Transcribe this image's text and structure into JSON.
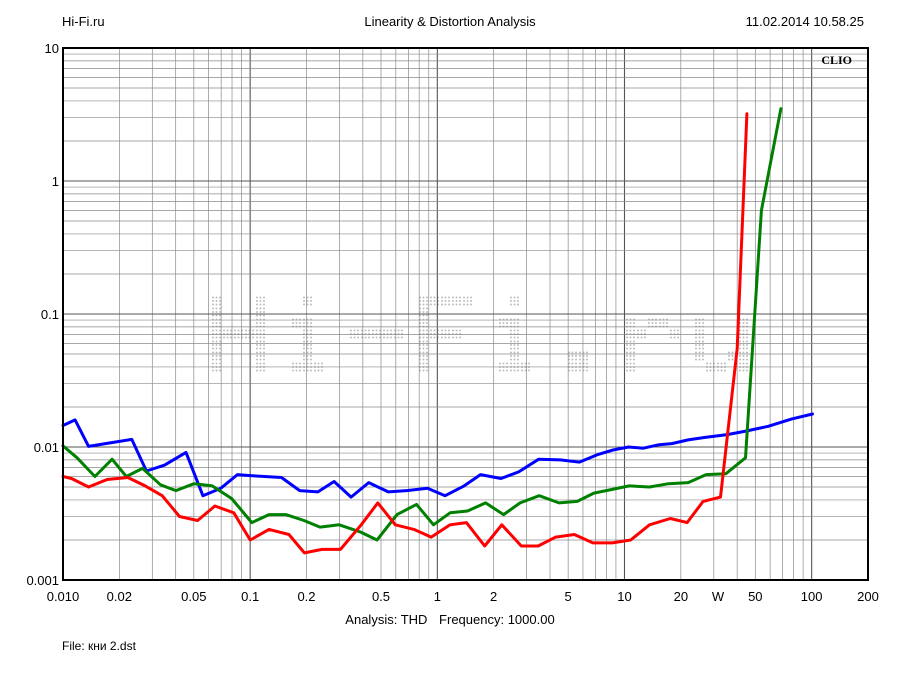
{
  "header": {
    "left": "Hi-Fi.ru",
    "center": "Linearity & Distortion Analysis",
    "right": "11.02.2014 10.58.25"
  },
  "brand": "CLIO",
  "watermark": "Hi-Fi.ru",
  "caption": {
    "analysis": "Analysis: THD",
    "frequency": "Frequency: 1000.00"
  },
  "file": "File: кни 2.dst",
  "chart_data": {
    "type": "line",
    "x_scale": "log",
    "y_scale": "log",
    "xlim": [
      0.01,
      200
    ],
    "ylim": [
      0.001,
      10
    ],
    "x_ticks": [
      {
        "v": 0.01,
        "label": "0.010"
      },
      {
        "v": 0.02,
        "label": "0.02"
      },
      {
        "v": 0.05,
        "label": "0.05"
      },
      {
        "v": 0.1,
        "label": "0.1"
      },
      {
        "v": 0.2,
        "label": "0.2"
      },
      {
        "v": 0.5,
        "label": "0.5"
      },
      {
        "v": 1,
        "label": "1"
      },
      {
        "v": 2,
        "label": "2"
      },
      {
        "v": 5,
        "label": "5"
      },
      {
        "v": 10,
        "label": "10"
      },
      {
        "v": 20,
        "label": "20"
      },
      {
        "v": 31.6,
        "label": "W"
      },
      {
        "v": 50,
        "label": "50"
      },
      {
        "v": 100,
        "label": "100"
      },
      {
        "v": 200,
        "label": "200"
      }
    ],
    "y_ticks": [
      {
        "v": 10,
        "label": "10"
      },
      {
        "v": 1,
        "label": "1"
      },
      {
        "v": 0.1,
        "label": "0.1"
      },
      {
        "v": 0.01,
        "label": "0.01"
      },
      {
        "v": 0.001,
        "label": "0.001"
      }
    ],
    "grid": true,
    "series": [
      {
        "color": "#0000ff",
        "points": [
          [
            0.01,
            0.0145
          ],
          [
            0.0116,
            0.016
          ],
          [
            0.0137,
            0.0101
          ],
          [
            0.0175,
            0.0107
          ],
          [
            0.0233,
            0.0114
          ],
          [
            0.0279,
            0.0066
          ],
          [
            0.0348,
            0.0073
          ],
          [
            0.0454,
            0.0091
          ],
          [
            0.0559,
            0.0043
          ],
          [
            0.0698,
            0.0049
          ],
          [
            0.0855,
            0.0062
          ],
          [
            0.1,
            0.0061
          ],
          [
            0.147,
            0.0059
          ],
          [
            0.184,
            0.0047
          ],
          [
            0.23,
            0.0046
          ],
          [
            0.281,
            0.0055
          ],
          [
            0.346,
            0.0042
          ],
          [
            0.43,
            0.0054
          ],
          [
            0.547,
            0.0046
          ],
          [
            0.686,
            0.0047
          ],
          [
            0.886,
            0.0049
          ],
          [
            1.1,
            0.0043
          ],
          [
            1.39,
            0.0051
          ],
          [
            1.7,
            0.0062
          ],
          [
            2.19,
            0.0058
          ],
          [
            2.72,
            0.0065
          ],
          [
            3.48,
            0.0081
          ],
          [
            4.53,
            0.008
          ],
          [
            5.74,
            0.0077
          ],
          [
            7.24,
            0.0088
          ],
          [
            8.68,
            0.0095
          ],
          [
            10.5,
            0.01
          ],
          [
            12.6,
            0.0098
          ],
          [
            15.3,
            0.0104
          ],
          [
            17.9,
            0.0106
          ],
          [
            21.9,
            0.0113
          ],
          [
            27.0,
            0.0118
          ],
          [
            35.4,
            0.0124
          ],
          [
            44.8,
            0.0132
          ],
          [
            58.6,
            0.0143
          ],
          [
            77.9,
            0.0162
          ],
          [
            101,
            0.0177
          ]
        ]
      },
      {
        "color": "#008000",
        "points": [
          [
            0.01,
            0.0102
          ],
          [
            0.0119,
            0.0083
          ],
          [
            0.0148,
            0.006
          ],
          [
            0.0183,
            0.0081
          ],
          [
            0.0218,
            0.006
          ],
          [
            0.0266,
            0.0069
          ],
          [
            0.0332,
            0.0052
          ],
          [
            0.0401,
            0.0047
          ],
          [
            0.0501,
            0.0053
          ],
          [
            0.0627,
            0.0051
          ],
          [
            0.0796,
            0.0041
          ],
          [
            0.102,
            0.0027
          ],
          [
            0.126,
            0.0031
          ],
          [
            0.155,
            0.0031
          ],
          [
            0.194,
            0.0028
          ],
          [
            0.236,
            0.0025
          ],
          [
            0.299,
            0.0026
          ],
          [
            0.387,
            0.0023
          ],
          [
            0.476,
            0.002
          ],
          [
            0.609,
            0.0031
          ],
          [
            0.774,
            0.0037
          ],
          [
            0.954,
            0.0026
          ],
          [
            1.17,
            0.0032
          ],
          [
            1.45,
            0.0033
          ],
          [
            1.81,
            0.0038
          ],
          [
            2.26,
            0.0031
          ],
          [
            2.77,
            0.0038
          ],
          [
            3.5,
            0.0043
          ],
          [
            4.47,
            0.0038
          ],
          [
            5.59,
            0.0039
          ],
          [
            6.86,
            0.0045
          ],
          [
            8.61,
            0.0048
          ],
          [
            10.6,
            0.0051
          ],
          [
            13.6,
            0.005
          ],
          [
            17.2,
            0.0053
          ],
          [
            21.9,
            0.0054
          ],
          [
            27.3,
            0.0062
          ],
          [
            34.8,
            0.0063
          ],
          [
            44.3,
            0.0083
          ],
          [
            53.9,
            0.6
          ],
          [
            68.5,
            3.5
          ]
        ]
      },
      {
        "color": "#ff0000",
        "points": [
          [
            0.01,
            0.006
          ],
          [
            0.0111,
            0.0058
          ],
          [
            0.0137,
            0.005
          ],
          [
            0.0172,
            0.0057
          ],
          [
            0.0222,
            0.0059
          ],
          [
            0.0275,
            0.0051
          ],
          [
            0.0339,
            0.0043
          ],
          [
            0.0419,
            0.003
          ],
          [
            0.0524,
            0.0028
          ],
          [
            0.0648,
            0.0036
          ],
          [
            0.0818,
            0.0032
          ],
          [
            0.1,
            0.002
          ],
          [
            0.126,
            0.0024
          ],
          [
            0.161,
            0.0022
          ],
          [
            0.195,
            0.0016
          ],
          [
            0.242,
            0.0017
          ],
          [
            0.304,
            0.0017
          ],
          [
            0.392,
            0.0026
          ],
          [
            0.481,
            0.0038
          ],
          [
            0.596,
            0.0026
          ],
          [
            0.75,
            0.0024
          ],
          [
            0.927,
            0.0021
          ],
          [
            1.17,
            0.0026
          ],
          [
            1.43,
            0.0027
          ],
          [
            1.79,
            0.0018
          ],
          [
            2.21,
            0.0026
          ],
          [
            2.81,
            0.0018
          ],
          [
            3.46,
            0.0018
          ],
          [
            4.29,
            0.0021
          ],
          [
            5.39,
            0.0022
          ],
          [
            6.78,
            0.0019
          ],
          [
            8.61,
            0.0019
          ],
          [
            10.8,
            0.002
          ],
          [
            13.6,
            0.0026
          ],
          [
            17.6,
            0.0029
          ],
          [
            21.6,
            0.0027
          ],
          [
            26.3,
            0.0039
          ],
          [
            32.6,
            0.0042
          ],
          [
            40.0,
            0.055
          ],
          [
            45.1,
            3.2
          ]
        ]
      }
    ]
  }
}
